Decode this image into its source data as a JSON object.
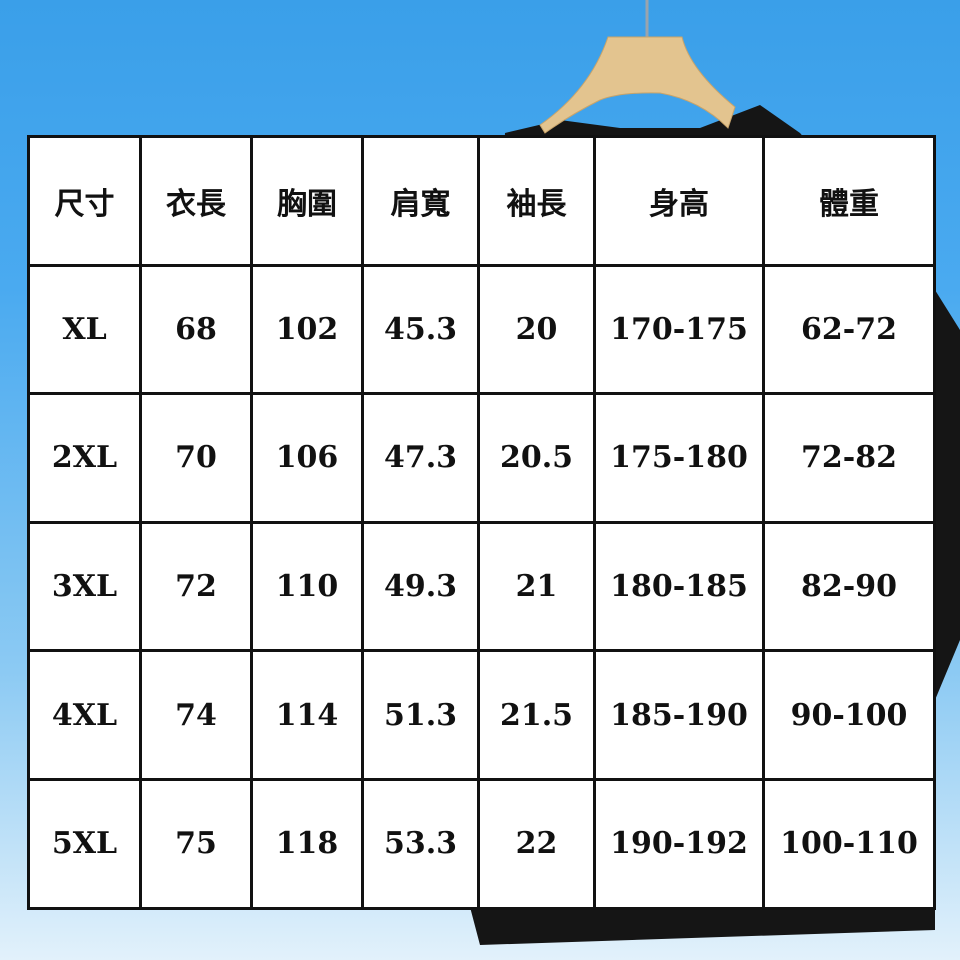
{
  "colors": {
    "background_top": "#3a9fe9",
    "background_bottom": "#e2f1fb",
    "hanger": "#e3c48f",
    "shirt": "#151515",
    "grid": "#111111"
  },
  "table": {
    "headers": [
      "尺寸",
      "衣長",
      "胸圍",
      "肩寬",
      "袖長",
      "身高",
      "體重"
    ],
    "rows": [
      [
        "XL",
        "68",
        "102",
        "45.3",
        "20",
        "170-175",
        "62-72"
      ],
      [
        "2XL",
        "70",
        "106",
        "47.3",
        "20.5",
        "175-180",
        "72-82"
      ],
      [
        "3XL",
        "72",
        "110",
        "49.3",
        "21",
        "180-185",
        "82-90"
      ],
      [
        "4XL",
        "74",
        "114",
        "51.3",
        "21.5",
        "185-190",
        "90-100"
      ],
      [
        "5XL",
        "75",
        "118",
        "53.3",
        "22",
        "190-192",
        "100-110"
      ]
    ]
  }
}
